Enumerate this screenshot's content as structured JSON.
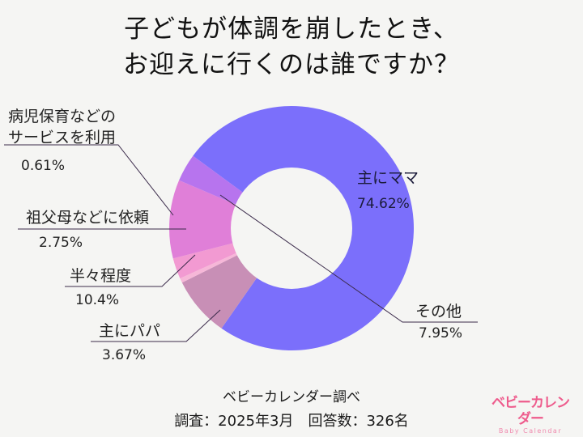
{
  "title": {
    "line1": "子どもが体調を崩したとき、",
    "line2": "お迎えに行くのは誰ですか？"
  },
  "labels": {
    "mama": {
      "name": "主にママ",
      "pct": "74.62%"
    },
    "other": {
      "name": "その他",
      "pct": "7.95%"
    },
    "sick_care": {
      "name_line1": "病児保育などの",
      "name_line2": "サービスを利用",
      "pct": "0.61%"
    },
    "grandparents": {
      "name": "祖父母などに依頼",
      "pct": "2.75%"
    },
    "half": {
      "name": "半々程度",
      "pct": "10.4%"
    },
    "papa": {
      "name": "主にパパ",
      "pct": "3.67%"
    }
  },
  "footer": {
    "source": "ベビーカレンダー調べ",
    "survey": "調査：2025年3月　回答数：326名"
  },
  "logo": {
    "jp": "ベビーカレンダー",
    "en": "Baby Calendar"
  },
  "colors": {
    "background": "#f5f5f3",
    "mama": "#7b6ffb",
    "other": "#c88fb6",
    "sick_care": "#f6b7d8",
    "grandparents": "#f29ad2",
    "half": "#e07fd8",
    "papa": "#b774ee",
    "logo": "#ee5b8c"
  },
  "chart_data": {
    "type": "pie",
    "subtype": "donut",
    "title": "子どもが体調を崩したとき、お迎えに行くのは誰ですか？",
    "categories": [
      "主にママ",
      "その他",
      "病児保育などのサービスを利用",
      "祖父母などに依頼",
      "半々程度",
      "主にパパ"
    ],
    "values": [
      74.62,
      7.95,
      0.61,
      2.75,
      10.4,
      3.67
    ],
    "unit": "%",
    "colors": [
      "#7b6ffb",
      "#c88fb6",
      "#f6b7d8",
      "#f29ad2",
      "#e07fd8",
      "#b774ee"
    ],
    "source": "ベビーカレンダー調べ",
    "survey_date": "2025年3月",
    "respondents": 326
  }
}
